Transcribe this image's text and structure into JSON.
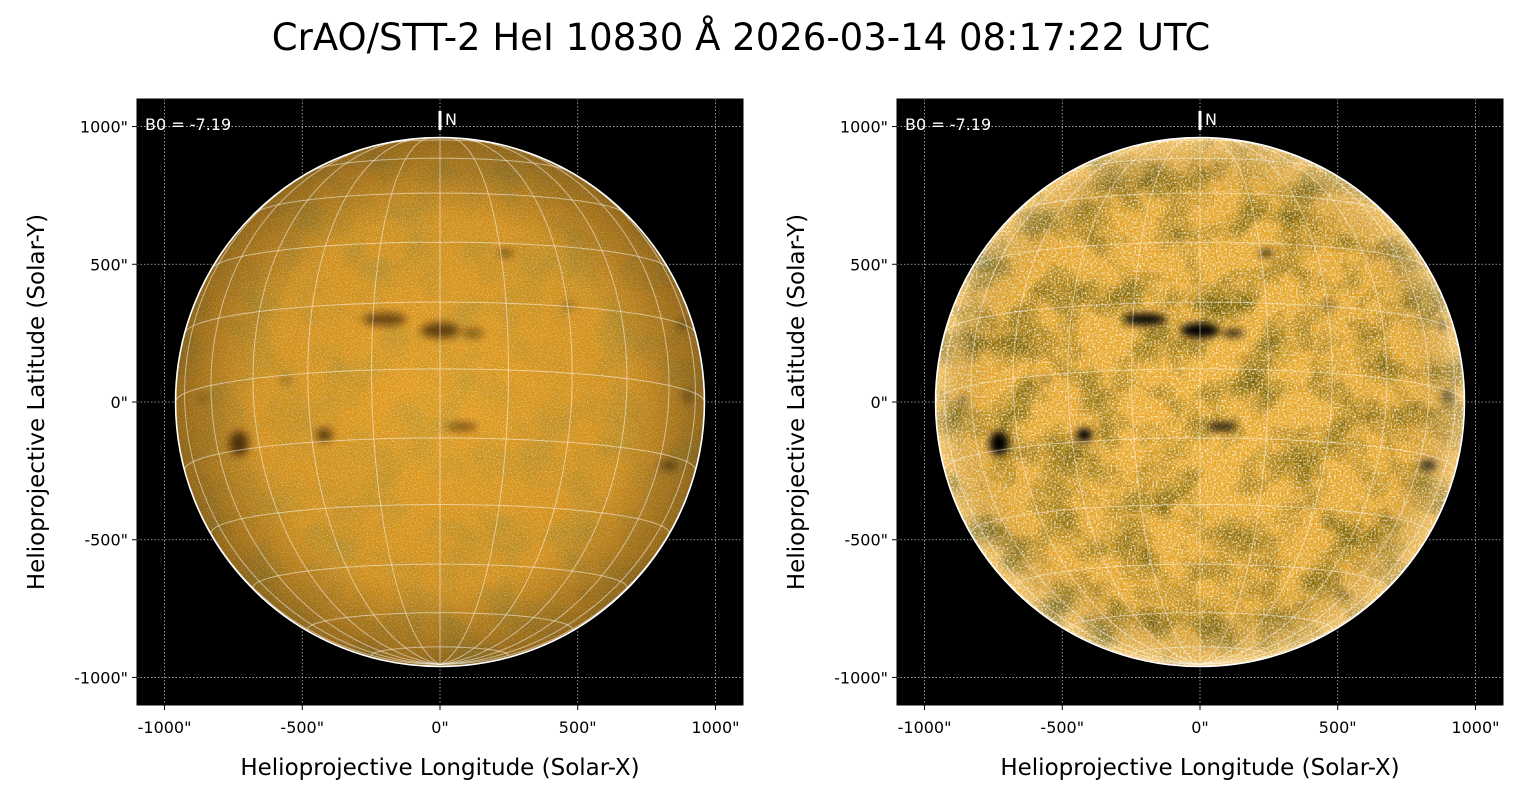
{
  "title": "CrAO/STT-2 HeI 10830 Å 2026-03-14 08:17:22 UTC",
  "colors": {
    "disk_base": "#e39a1a",
    "disk_base_processed": "#eba92a",
    "background": "#000000",
    "grid": "#ffffff",
    "limb": "#ffffff"
  },
  "panels": [
    {
      "name": "left",
      "processed": false,
      "b0_label": "B0 = -7.19",
      "north_label": "N",
      "xlabel": "Helioprojective Longitude (Solar-X)",
      "ylabel": "Helioprojective Latitude (Solar-Y)",
      "xticks": [
        "-1000\"",
        "-500\"",
        "0\"",
        "500\"",
        "1000\""
      ],
      "yticks": [
        "1000\"",
        "500\"",
        "0\"",
        "-500\"",
        "-1000\""
      ]
    },
    {
      "name": "right",
      "processed": true,
      "b0_label": "B0 = -7.19",
      "north_label": "N",
      "xlabel": "Helioprojective Longitude (Solar-X)",
      "ylabel": "Helioprojective Latitude (Solar-Y)",
      "xticks": [
        "-1000\"",
        "-500\"",
        "0\"",
        "500\"",
        "1000\""
      ],
      "yticks": [
        "1000\"",
        "500\"",
        "0\"",
        "-500\"",
        "-1000\""
      ]
    }
  ],
  "image_features": {
    "b0_deg": -7.19,
    "solar_radius_arcsec": 960,
    "axis_range_arcsec": [
      -1100,
      1100
    ],
    "tick_values_arcsec": [
      -1000,
      -500,
      0,
      500,
      1000
    ],
    "dark_features": [
      {
        "x": 240,
        "y": 540,
        "rx": 25,
        "ry": 12,
        "d": 0.8
      },
      {
        "x": -200,
        "y": 300,
        "rx": 80,
        "ry": 22,
        "d": 0.85
      },
      {
        "x": 0,
        "y": 260,
        "rx": 70,
        "ry": 28,
        "d": 0.9
      },
      {
        "x": 120,
        "y": 250,
        "rx": 40,
        "ry": 15,
        "d": 0.7
      },
      {
        "x": -730,
        "y": -150,
        "rx": 35,
        "ry": 45,
        "d": 0.95
      },
      {
        "x": -420,
        "y": -120,
        "rx": 30,
        "ry": 25,
        "d": 0.9
      },
      {
        "x": 80,
        "y": -90,
        "rx": 55,
        "ry": 14,
        "d": 0.8
      },
      {
        "x": 830,
        "y": -230,
        "rx": 30,
        "ry": 18,
        "d": 0.75
      },
      {
        "x": -560,
        "y": 80,
        "rx": 20,
        "ry": 10,
        "d": 0.5
      },
      {
        "x": 470,
        "y": 350,
        "rx": 25,
        "ry": 10,
        "d": 0.5
      },
      {
        "x": 710,
        "y": -680,
        "rx": 20,
        "ry": 10,
        "d": 0.6
      },
      {
        "x": 520,
        "y": -700,
        "rx": 15,
        "ry": 8,
        "d": 0.5
      },
      {
        "x": 900,
        "y": 20,
        "rx": 15,
        "ry": 25,
        "d": 0.6
      },
      {
        "x": 880,
        "y": 280,
        "rx": 14,
        "ry": 18,
        "d": 0.6
      },
      {
        "x": -860,
        "y": 10,
        "rx": 12,
        "ry": 15,
        "d": 0.5
      }
    ]
  }
}
